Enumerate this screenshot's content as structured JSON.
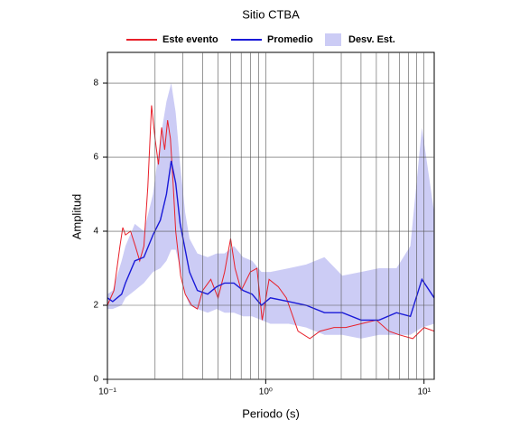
{
  "chart_data": {
    "type": "line",
    "title": "Sitio CTBA",
    "xlabel": "Periodo (s)",
    "ylabel": "Amplitud",
    "xscale": "log",
    "xlim": [
      0.1,
      11.6
    ],
    "ylim": [
      0,
      8.83
    ],
    "xticks": [
      {
        "value": 0.1,
        "label": "10⁻¹"
      },
      {
        "value": 1,
        "label": "10⁰"
      },
      {
        "value": 10,
        "label": "10¹"
      }
    ],
    "xgrid": [
      0.2,
      0.3,
      0.4,
      0.5,
      0.6,
      0.7,
      0.8,
      0.9,
      1,
      2,
      3,
      4,
      5,
      6,
      7,
      8,
      9,
      10
    ],
    "yticks": [
      0,
      2,
      4,
      6,
      8
    ],
    "grid": true,
    "band": {
      "name": "Desv. Est.",
      "color": "#ccccf5",
      "x": [
        0.1,
        0.108,
        0.123,
        0.13,
        0.149,
        0.17,
        0.194,
        0.216,
        0.236,
        0.253,
        0.27,
        0.288,
        0.31,
        0.33,
        0.37,
        0.43,
        0.49,
        0.55,
        0.63,
        0.72,
        0.82,
        0.94,
        1.07,
        1.4,
        1.8,
        2.35,
        3.05,
        4.0,
        5.2,
        6.7,
        8.2,
        9.7,
        11.6
      ],
      "upper": [
        2.3,
        2.4,
        3.2,
        3.6,
        4.2,
        4.0,
        5.0,
        6.5,
        7.5,
        8.0,
        7.2,
        5.8,
        4.5,
        3.8,
        3.4,
        3.3,
        3.4,
        3.4,
        3.6,
        3.3,
        3.2,
        2.9,
        2.9,
        3.0,
        3.1,
        3.3,
        2.8,
        2.9,
        3.0,
        3.0,
        3.6,
        6.8,
        4.5
      ],
      "lower": [
        1.9,
        1.9,
        2.0,
        2.2,
        2.4,
        2.6,
        2.9,
        3.0,
        3.2,
        3.5,
        3.5,
        3.0,
        2.3,
        2.0,
        1.9,
        1.8,
        1.9,
        1.8,
        1.8,
        1.7,
        1.7,
        1.6,
        1.5,
        1.5,
        1.4,
        1.2,
        1.2,
        1.1,
        1.2,
        1.2,
        1.2,
        1.4,
        1.5
      ]
    },
    "series": [
      {
        "name": "Este evento",
        "color": "#e8202a",
        "x": [
          0.1,
          0.11,
          0.12,
          0.125,
          0.13,
          0.14,
          0.15,
          0.16,
          0.17,
          0.18,
          0.19,
          0.2,
          0.21,
          0.22,
          0.23,
          0.24,
          0.25,
          0.26,
          0.27,
          0.29,
          0.31,
          0.34,
          0.37,
          0.4,
          0.45,
          0.5,
          0.55,
          0.6,
          0.64,
          0.7,
          0.8,
          0.88,
          0.95,
          1.05,
          1.2,
          1.35,
          1.6,
          1.9,
          2.2,
          2.7,
          3.2,
          4.0,
          5.0,
          6.0,
          7.0,
          8.5,
          10,
          11.6
        ],
        "values": [
          2.0,
          2.4,
          3.6,
          4.1,
          3.9,
          4.0,
          3.6,
          3.2,
          3.6,
          5.2,
          7.4,
          6.5,
          5.8,
          6.8,
          6.2,
          7.0,
          6.5,
          5.3,
          4.0,
          2.8,
          2.3,
          2.0,
          1.9,
          2.4,
          2.7,
          2.2,
          2.9,
          3.8,
          3.0,
          2.4,
          2.9,
          3.0,
          1.6,
          2.7,
          2.5,
          2.2,
          1.3,
          1.1,
          1.3,
          1.4,
          1.4,
          1.5,
          1.6,
          1.3,
          1.2,
          1.1,
          1.4,
          1.3
        ]
      },
      {
        "name": "Promedio",
        "color": "#1a1ad8",
        "x": [
          0.1,
          0.108,
          0.123,
          0.13,
          0.149,
          0.17,
          0.194,
          0.216,
          0.236,
          0.253,
          0.27,
          0.288,
          0.31,
          0.33,
          0.37,
          0.43,
          0.49,
          0.55,
          0.63,
          0.72,
          0.82,
          0.94,
          1.07,
          1.4,
          1.8,
          2.35,
          3.05,
          4.0,
          5.2,
          6.7,
          8.2,
          9.7,
          11.6
        ],
        "values": [
          2.2,
          2.1,
          2.3,
          2.6,
          3.2,
          3.3,
          3.9,
          4.3,
          5.0,
          5.9,
          5.3,
          4.2,
          3.5,
          2.9,
          2.4,
          2.3,
          2.5,
          2.6,
          2.6,
          2.4,
          2.3,
          2.0,
          2.2,
          2.1,
          2.0,
          1.8,
          1.8,
          1.6,
          1.6,
          1.8,
          1.7,
          2.7,
          2.2
        ]
      }
    ]
  }
}
